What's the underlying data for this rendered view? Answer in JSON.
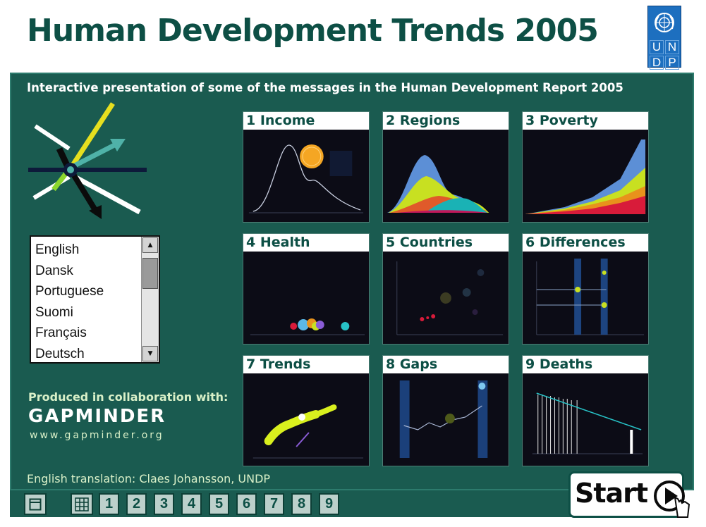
{
  "header": {
    "title": "Human Development Trends 2005"
  },
  "undp_logo": {
    "letters": [
      "U",
      "N",
      "D",
      "P"
    ]
  },
  "panel": {
    "subtitle": "Interactive presentation of some of the messages in the Human Development Report 2005"
  },
  "languages": {
    "items": [
      "English",
      "Dansk",
      "Portuguese",
      "Suomi",
      "Français",
      "Deutsch"
    ]
  },
  "collaboration": {
    "label": "Produced in collaboration with:",
    "logo_text": "GAPMINDER",
    "url": "www.gapminder.org"
  },
  "translation_credit": "English translation: Claes Johansson, UNDP",
  "topics": [
    {
      "title": "1 Income"
    },
    {
      "title": "2 Regions"
    },
    {
      "title": "3 Poverty"
    },
    {
      "title": "4 Health"
    },
    {
      "title": "5 Countries"
    },
    {
      "title": "6 Differences"
    },
    {
      "title": "7 Trends"
    },
    {
      "title": "8 Gaps"
    },
    {
      "title": "9 Deaths"
    }
  ],
  "bottom_nav": {
    "numbers": [
      "1",
      "2",
      "3",
      "4",
      "5",
      "6",
      "7",
      "8",
      "9"
    ]
  },
  "start_button": {
    "label": "Start"
  },
  "colors": {
    "title_green": "#0d4f45",
    "panel_green": "#1a5b50",
    "undp_blue": "#1d6fbf",
    "income_ball": "#f5a623"
  }
}
